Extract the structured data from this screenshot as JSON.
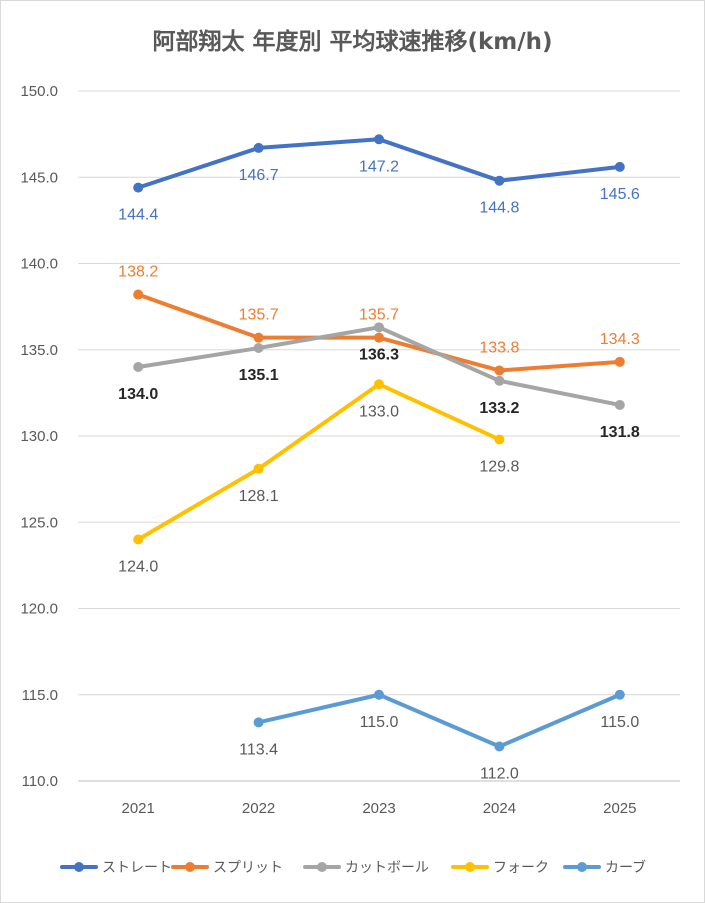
{
  "chart_data": {
    "type": "line",
    "title": "阿部翔太 年度別 平均球速推移(km/h)",
    "xlabel": "",
    "ylabel": "",
    "categories": [
      "2021",
      "2022",
      "2023",
      "2024",
      "2025"
    ],
    "ylim": [
      110,
      150
    ],
    "ytick_step": 5,
    "ytick_labels": [
      "110.0",
      "115.0",
      "120.0",
      "125.0",
      "130.0",
      "135.0",
      "140.0",
      "145.0",
      "150.0"
    ],
    "grid": true,
    "legend": "bottom",
    "series": [
      {
        "name": "ストレート",
        "color": "#4472c4",
        "label_color": "#4472c4",
        "label_pos": [
          "below",
          "below",
          "below",
          "below",
          "below"
        ],
        "values": [
          144.4,
          146.7,
          147.2,
          144.8,
          145.6
        ],
        "labels": [
          "144.4",
          "146.7",
          "147.2",
          "144.8",
          "145.6"
        ]
      },
      {
        "name": "スプリット",
        "color": "#ed7d31",
        "label_color": "#ed7d31",
        "label_pos": [
          "above",
          "above",
          "above",
          "above",
          "above"
        ],
        "values": [
          138.2,
          135.7,
          135.7,
          133.8,
          134.3
        ],
        "labels": [
          "138.2",
          "135.7",
          "135.7",
          "133.8",
          "134.3"
        ]
      },
      {
        "name": "カットボール",
        "color": "#a5a5a5",
        "label_color": "#262626",
        "label_pos": [
          "below",
          "below",
          "below",
          "below",
          "below"
        ],
        "label_bold": true,
        "values": [
          134.0,
          135.1,
          136.3,
          133.2,
          131.8
        ],
        "labels": [
          "134.0",
          "135.1",
          "136.3",
          "133.2",
          "131.8"
        ]
      },
      {
        "name": "フォーク",
        "color": "#ffc000",
        "label_color": "#595959",
        "label_pos": [
          "below",
          "below",
          "below",
          "below",
          null
        ],
        "values": [
          124.0,
          128.1,
          133.0,
          129.8,
          null
        ],
        "labels": [
          "124.0",
          "128.1",
          "133.0",
          "129.8",
          ""
        ]
      },
      {
        "name": "カーブ",
        "color": "#5b9bd5",
        "label_color": "#595959",
        "label_pos": [
          null,
          "below",
          "below",
          "below",
          "below"
        ],
        "values": [
          null,
          113.4,
          115.0,
          112.0,
          115.0
        ],
        "labels": [
          "",
          "113.4",
          "115.0",
          "112.0",
          "115.0"
        ]
      }
    ]
  }
}
